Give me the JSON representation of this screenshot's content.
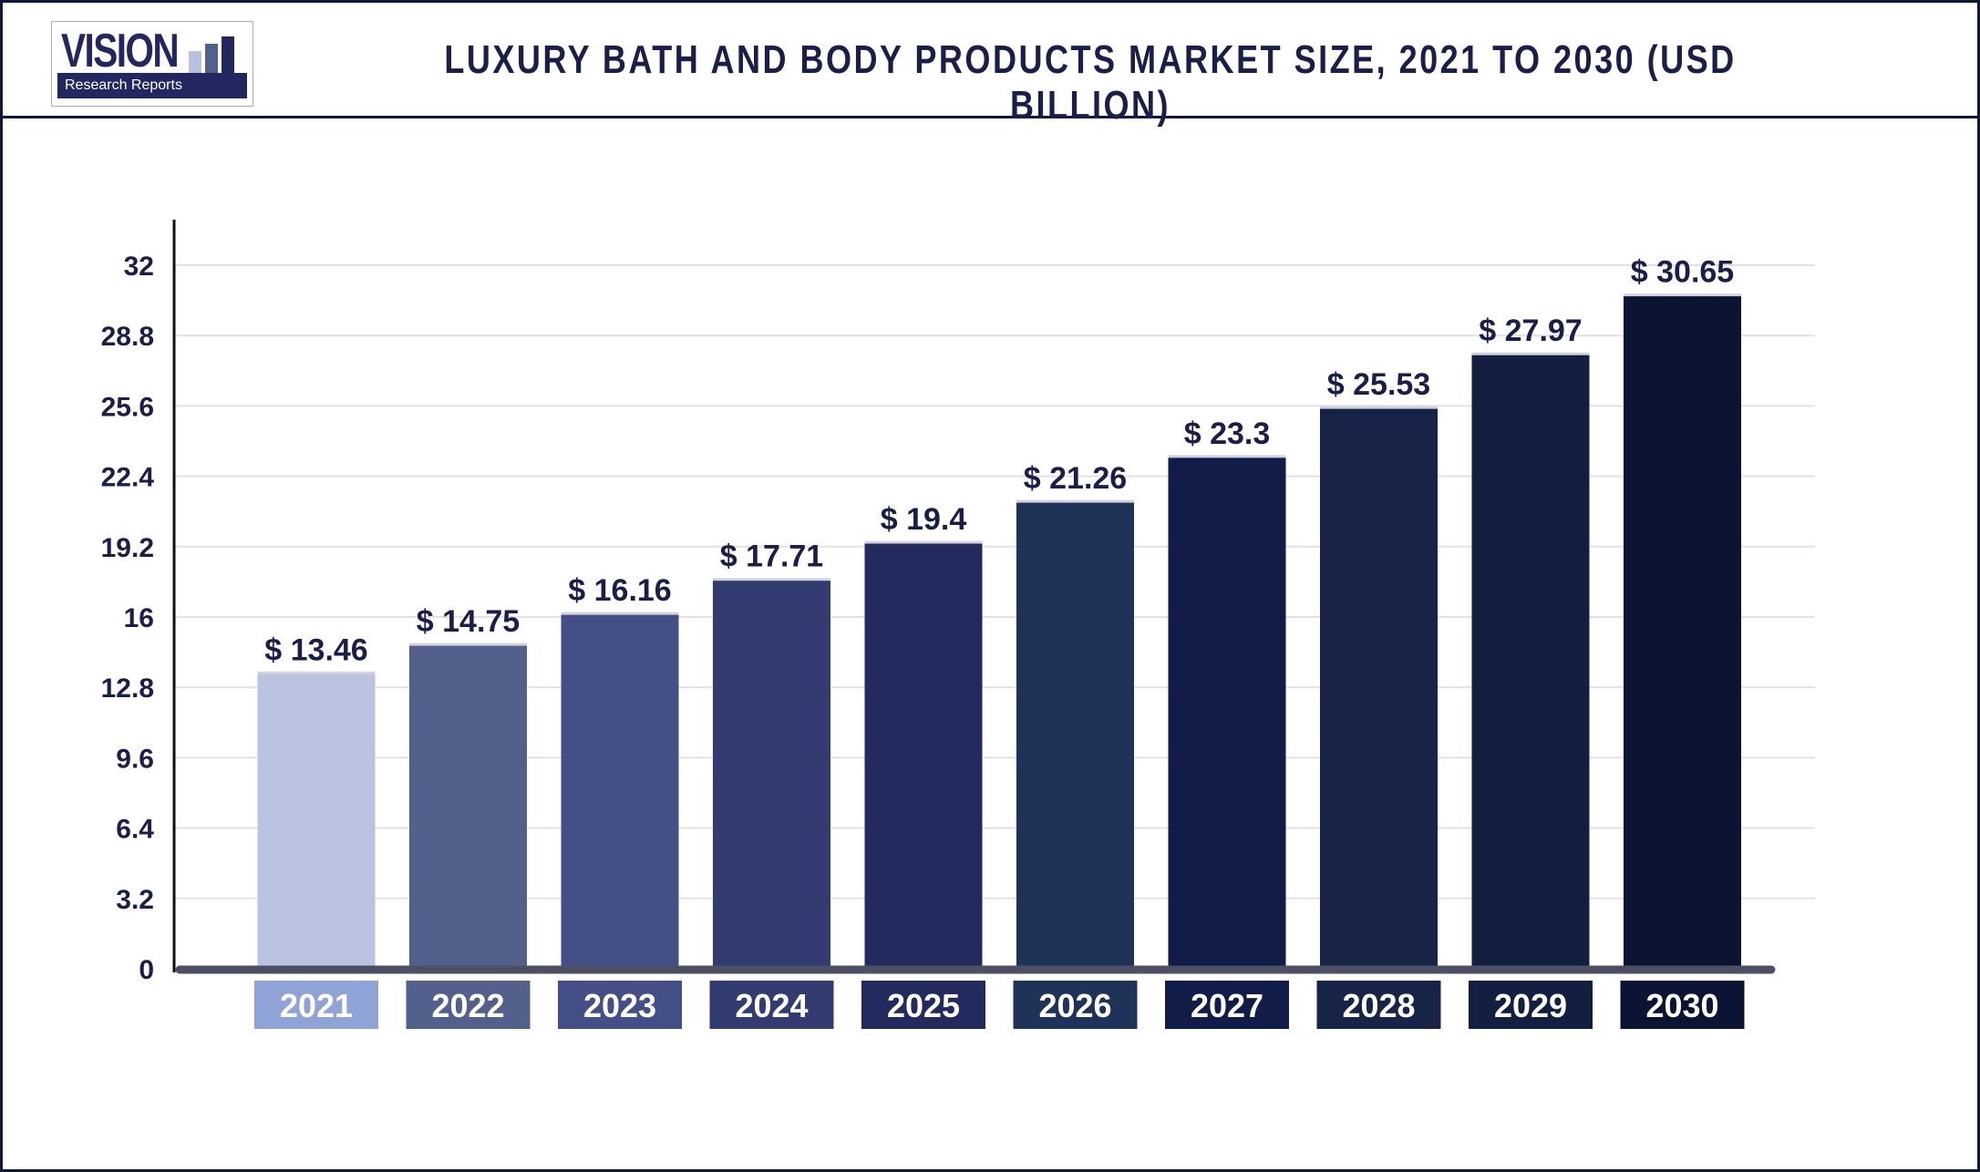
{
  "logo": {
    "word": "VISION",
    "tagline": "Research Reports"
  },
  "chart_data": {
    "type": "bar",
    "title": "LUXURY BATH AND BODY PRODUCTS MARKET SIZE, 2021 TO 2030 (USD BILLION)",
    "categories": [
      "2021",
      "2022",
      "2023",
      "2024",
      "2025",
      "2026",
      "2027",
      "2028",
      "2029",
      "2030"
    ],
    "values": [
      13.46,
      14.75,
      16.16,
      17.71,
      19.4,
      21.26,
      23.3,
      25.53,
      27.97,
      30.65
    ],
    "value_labels": [
      "$ 13.46",
      "$ 14.75",
      "$ 16.16",
      "$ 17.71",
      "$ 19.4",
      "$ 21.26",
      "$ 23.3",
      "$ 25.53",
      "$ 27.97",
      "$ 30.65"
    ],
    "yticks": [
      "0",
      "3.2",
      "6.4",
      "9.6",
      "12.8",
      "16",
      "19.2",
      "22.4",
      "25.6",
      "28.8",
      "32"
    ],
    "ylim": [
      0,
      32
    ],
    "grid": true,
    "xlabel": "",
    "ylabel": "",
    "bar_colors": [
      "#bac4e2",
      "#53608c",
      "#454f87",
      "#323c70",
      "#232a5e",
      "#1f3358",
      "#111c48",
      "#172447",
      "#121f40",
      "#0c1434"
    ],
    "label_colors": [
      "#8fa3d6",
      "#53608c",
      "#454f87",
      "#323c70",
      "#232a5e",
      "#1f3358",
      "#111c48",
      "#172447",
      "#121f40",
      "#0c1434"
    ]
  }
}
